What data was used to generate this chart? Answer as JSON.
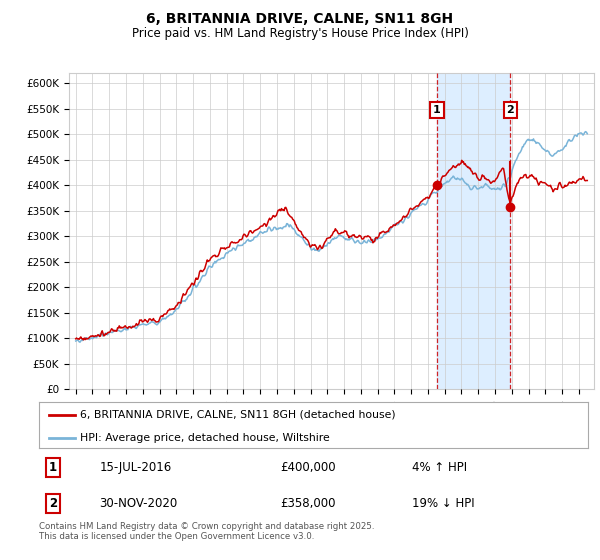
{
  "title": "6, BRITANNIA DRIVE, CALNE, SN11 8GH",
  "subtitle": "Price paid vs. HM Land Registry's House Price Index (HPI)",
  "ylim": [
    0,
    620000
  ],
  "yticks": [
    0,
    50000,
    100000,
    150000,
    200000,
    250000,
    300000,
    350000,
    400000,
    450000,
    500000,
    550000,
    600000
  ],
  "ytick_labels": [
    "£0",
    "£50K",
    "£100K",
    "£150K",
    "£200K",
    "£250K",
    "£300K",
    "£350K",
    "£400K",
    "£450K",
    "£500K",
    "£550K",
    "£600K"
  ],
  "hpi_color": "#7ab4d8",
  "price_color": "#cc0000",
  "shade_color": "#ddeeff",
  "marker1_date": 2016.54,
  "marker2_date": 2020.92,
  "marker1_price": 400000,
  "marker2_price": 358000,
  "transaction1": "15-JUL-2016",
  "transaction2": "30-NOV-2020",
  "amount1": "£400,000",
  "amount2": "£358,000",
  "pct1": "4% ↑ HPI",
  "pct2": "19% ↓ HPI",
  "legend1": "6, BRITANNIA DRIVE, CALNE, SN11 8GH (detached house)",
  "legend2": "HPI: Average price, detached house, Wiltshire",
  "footer": "Contains HM Land Registry data © Crown copyright and database right 2025.\nThis data is licensed under the Open Government Licence v3.0.",
  "background_color": "#ffffff",
  "grid_color": "#cccccc",
  "xlim_left": 1994.6,
  "xlim_right": 2025.9
}
